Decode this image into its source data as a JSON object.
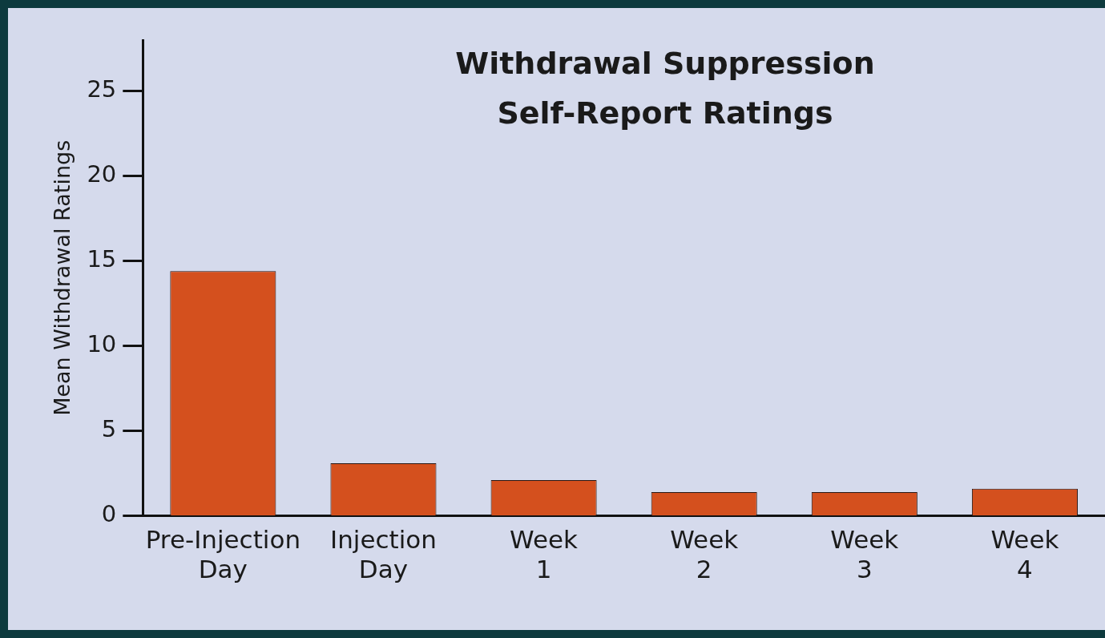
{
  "chart_data": {
    "type": "bar",
    "title": [
      "Withdrawal Suppression",
      "Self-Report Ratings"
    ],
    "ylabel": "Mean Withdrawal Ratings",
    "categories": [
      [
        "Pre-Injection",
        "Day"
      ],
      [
        "Injection",
        "Day"
      ],
      [
        "Week",
        "1"
      ],
      [
        "Week",
        "2"
      ],
      [
        "Week",
        "3"
      ],
      [
        "Week",
        "4"
      ]
    ],
    "values": [
      14.4,
      3.1,
      2.1,
      1.4,
      1.4,
      1.6
    ],
    "color": "#d4501e",
    "ylim": [
      0,
      28
    ],
    "yticks": [
      0,
      5,
      10,
      15,
      20,
      25
    ],
    "grid": false,
    "legend": false
  }
}
